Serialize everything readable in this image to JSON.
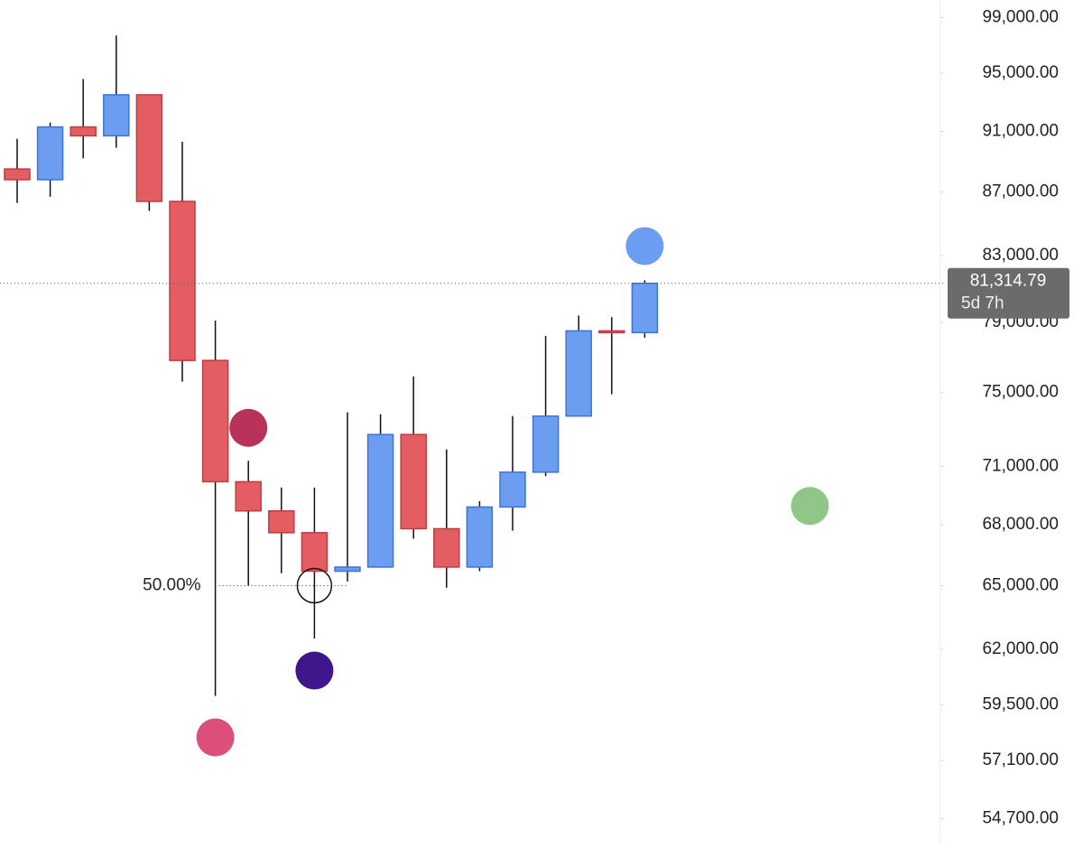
{
  "chart_data": {
    "type": "candlestick",
    "log_scale": true,
    "ylim": [
      53700,
      100300
    ],
    "yticks": [
      {
        "value": 99000,
        "label": "99,000.00"
      },
      {
        "value": 95000,
        "label": "95,000.00"
      },
      {
        "value": 91000,
        "label": "91,000.00"
      },
      {
        "value": 87000,
        "label": "87,000.00"
      },
      {
        "value": 83000,
        "label": "83,000.00"
      },
      {
        "value": 79000,
        "label": "79,000.00"
      },
      {
        "value": 75000,
        "label": "75,000.00"
      },
      {
        "value": 71000,
        "label": "71,000.00"
      },
      {
        "value": 68000,
        "label": "68,000.00"
      },
      {
        "value": 65000,
        "label": "65,000.00"
      },
      {
        "value": 62000,
        "label": "62,000.00"
      },
      {
        "value": 59500,
        "label": "59,500.00"
      },
      {
        "value": 57100,
        "label": "57,100.00"
      },
      {
        "value": 54700,
        "label": "54,700.00"
      }
    ],
    "up_color": "#6b9ef0",
    "down_color": "#e35d63",
    "open": [
      88500,
      87800,
      91300,
      90700,
      93500,
      86400,
      76800,
      70200,
      68700,
      67600,
      65700,
      65900,
      72700,
      67800,
      65900,
      68900,
      70700,
      73700,
      78500,
      78400
    ],
    "high": [
      90500,
      91600,
      94600,
      97700,
      93500,
      90300,
      79100,
      71300,
      69900,
      69900,
      73900,
      73800,
      75900,
      71900,
      69200,
      73700,
      78200,
      79400,
      79300,
      81500
    ],
    "low": [
      86300,
      86700,
      89200,
      89900,
      85800,
      75600,
      59900,
      65000,
      65600,
      62500,
      65200,
      65900,
      67300,
      64900,
      65700,
      67700,
      70500,
      73700,
      74900,
      78100
    ],
    "close": [
      87800,
      91300,
      90700,
      93500,
      86400,
      76800,
      70200,
      68700,
      67600,
      65700,
      65900,
      72700,
      67800,
      65900,
      68900,
      70700,
      73700,
      78500,
      78400,
      81314.79
    ],
    "current_price": {
      "value": 81314.79,
      "label": "81,314.79"
    },
    "countdown": "5d 7h",
    "level": {
      "label": "50.00%",
      "value": 65000,
      "from": 6,
      "to": 10
    },
    "markers": [
      {
        "x": 19,
        "value": 83590,
        "color": "#6b9ef0"
      },
      {
        "x": 7,
        "value": 73060,
        "color": "#b8325a"
      },
      {
        "x": 6,
        "value": 58090,
        "color": "#dc4f7b"
      },
      {
        "x": 9,
        "value": 61040,
        "color": "#3f168c"
      },
      {
        "x": 24,
        "value": 68950,
        "color": "#8fc886"
      },
      {
        "x": 9,
        "value": 65000,
        "color": "hollow"
      }
    ]
  }
}
